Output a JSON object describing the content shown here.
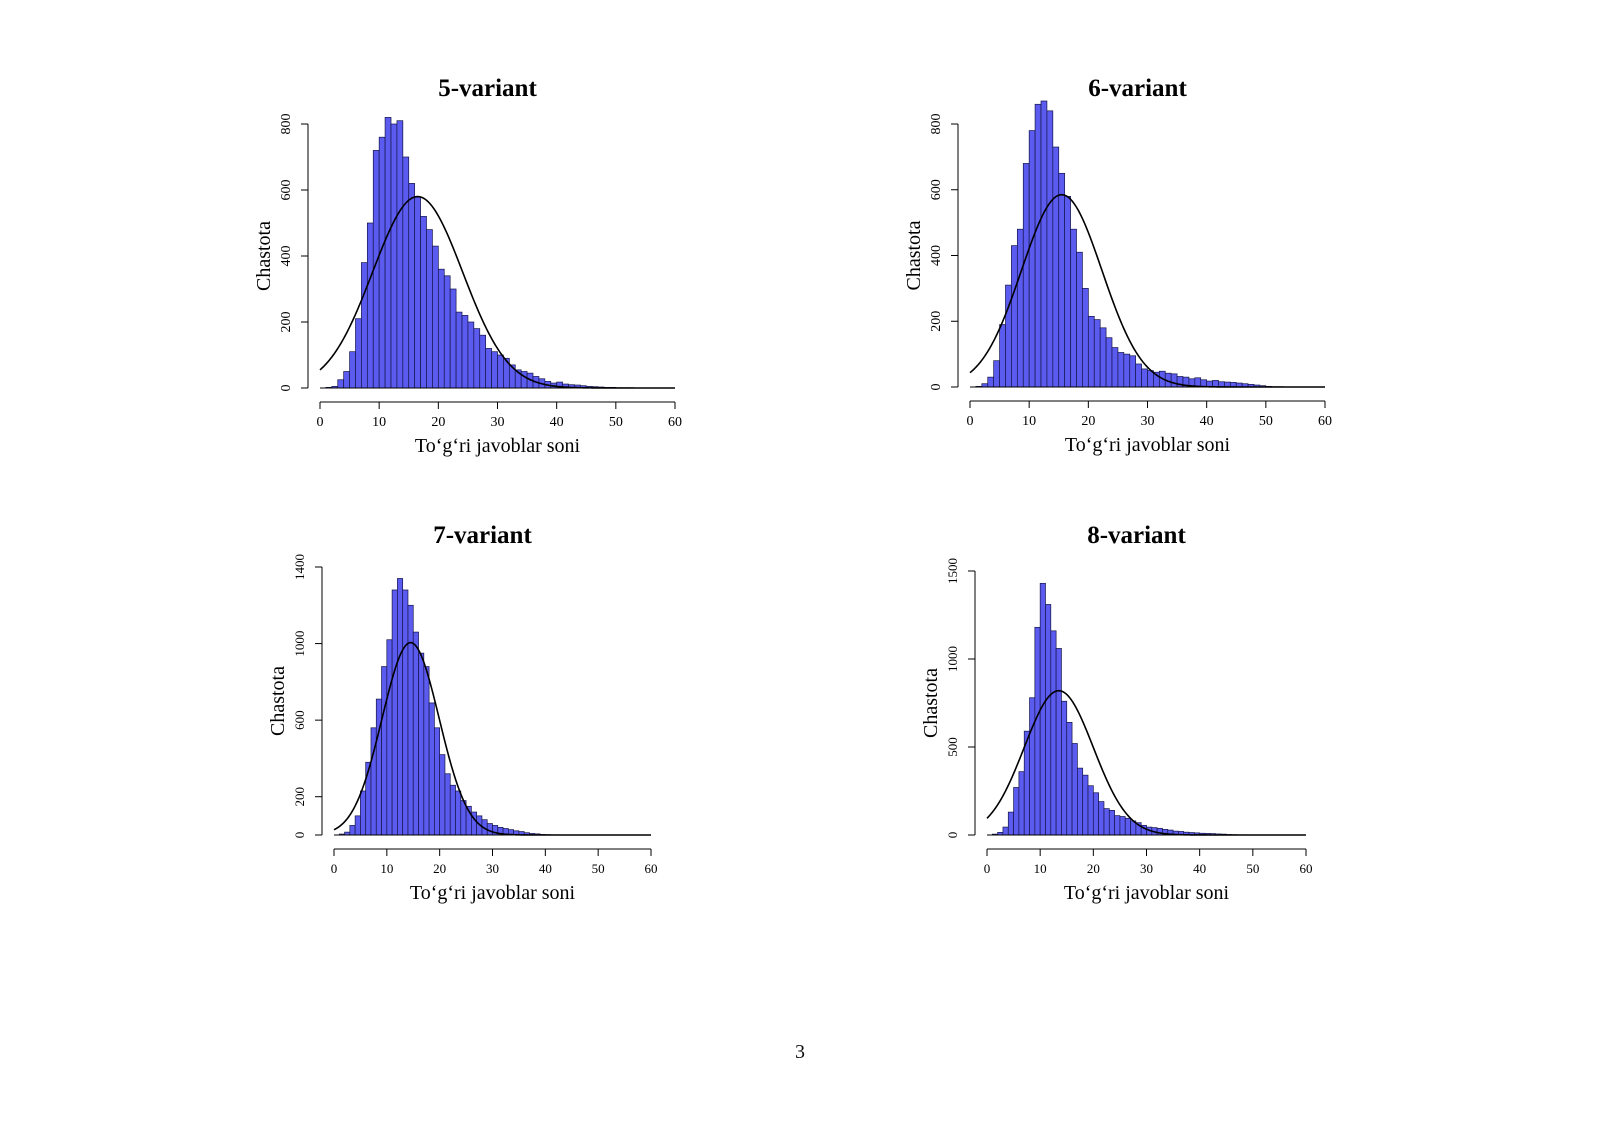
{
  "page_number": "3",
  "style": {
    "bar_fill": "#5b5bef",
    "bar_stroke": "#15154a",
    "curve": "#000000"
  },
  "chart_data": [
    {
      "type": "bar",
      "title": "5-variant",
      "xlabel": "To‘g‘ri javoblar soni",
      "ylabel": "Chastota",
      "xlim": [
        0,
        60
      ],
      "ylim": [
        0,
        800
      ],
      "xticks": [
        0,
        10,
        20,
        30,
        40,
        50,
        60
      ],
      "yticks": [
        0,
        200,
        400,
        600,
        800
      ],
      "bin_width": 1,
      "bins_start": 0,
      "values": [
        0,
        2,
        5,
        25,
        50,
        110,
        210,
        380,
        500,
        720,
        760,
        820,
        800,
        810,
        700,
        620,
        580,
        520,
        480,
        430,
        360,
        340,
        300,
        230,
        220,
        200,
        180,
        160,
        120,
        110,
        100,
        90,
        70,
        55,
        50,
        45,
        35,
        28,
        20,
        15,
        18,
        12,
        10,
        9,
        7,
        5,
        4,
        3,
        2,
        2,
        1,
        1,
        1,
        0,
        0,
        0,
        0,
        0,
        0,
        0
      ],
      "normal_curve": {
        "mean": 16.5,
        "sd": 7.6,
        "peak": 580
      }
    },
    {
      "type": "bar",
      "title": "6-variant",
      "xlabel": "To‘g‘ri javoblar soni",
      "ylabel": "Chastota",
      "xlim": [
        0,
        60
      ],
      "ylim": [
        0,
        800
      ],
      "xticks": [
        0,
        10,
        20,
        30,
        40,
        50,
        60
      ],
      "yticks": [
        0,
        200,
        400,
        600,
        800
      ],
      "bin_width": 1,
      "bins_start": 0,
      "values": [
        0,
        2,
        10,
        30,
        80,
        190,
        310,
        430,
        480,
        680,
        780,
        860,
        870,
        840,
        730,
        650,
        580,
        480,
        410,
        300,
        215,
        205,
        180,
        150,
        120,
        105,
        100,
        95,
        70,
        55,
        50,
        45,
        48,
        42,
        40,
        32,
        30,
        25,
        28,
        22,
        18,
        20,
        16,
        15,
        14,
        12,
        10,
        8,
        6,
        4,
        2,
        1,
        1,
        0,
        0,
        0,
        0,
        0,
        0,
        0
      ],
      "normal_curve": {
        "mean": 15.5,
        "sd": 6.8,
        "peak": 585
      }
    },
    {
      "type": "bar",
      "title": "7-variant",
      "xlabel": "To‘g‘ri javoblar soni",
      "ylabel": "Chastota",
      "xlim": [
        0,
        60
      ],
      "ylim": [
        0,
        1400
      ],
      "xticks": [
        0,
        10,
        20,
        30,
        40,
        50,
        60
      ],
      "yticks": [
        0,
        200,
        600,
        1000,
        1400
      ],
      "bin_width": 1,
      "bins_start": 0,
      "values": [
        0,
        5,
        15,
        50,
        100,
        230,
        380,
        560,
        710,
        880,
        1020,
        1280,
        1340,
        1280,
        1200,
        1060,
        950,
        880,
        690,
        560,
        420,
        320,
        260,
        230,
        180,
        150,
        120,
        100,
        80,
        60,
        50,
        40,
        34,
        28,
        22,
        18,
        12,
        8,
        6,
        3,
        2,
        1,
        1,
        0,
        0,
        0,
        0,
        0,
        0,
        0,
        0,
        0,
        0,
        0,
        0,
        0,
        0,
        0,
        0,
        0
      ],
      "normal_curve": {
        "mean": 14.5,
        "sd": 5.4,
        "peak": 1005
      }
    },
    {
      "type": "bar",
      "title": "8-variant",
      "xlabel": "To‘g‘ri javoblar soni",
      "ylabel": "Chastota",
      "xlim": [
        0,
        60
      ],
      "ylim": [
        0,
        1500
      ],
      "xticks": [
        0,
        10,
        20,
        30,
        40,
        50,
        60
      ],
      "yticks": [
        0,
        500,
        1000,
        1500
      ],
      "bin_width": 1,
      "bins_start": 0,
      "values": [
        0,
        5,
        15,
        45,
        130,
        270,
        360,
        590,
        780,
        1180,
        1430,
        1310,
        1160,
        1060,
        760,
        640,
        520,
        380,
        340,
        280,
        240,
        190,
        150,
        140,
        110,
        105,
        95,
        80,
        70,
        55,
        45,
        42,
        38,
        32,
        28,
        22,
        20,
        16,
        14,
        12,
        10,
        9,
        8,
        6,
        5,
        3,
        2,
        1,
        1,
        0,
        0,
        0,
        0,
        0,
        0,
        0,
        0,
        0,
        0,
        0
      ],
      "normal_curve": {
        "mean": 13.5,
        "sd": 6.5,
        "peak": 820
      }
    }
  ]
}
